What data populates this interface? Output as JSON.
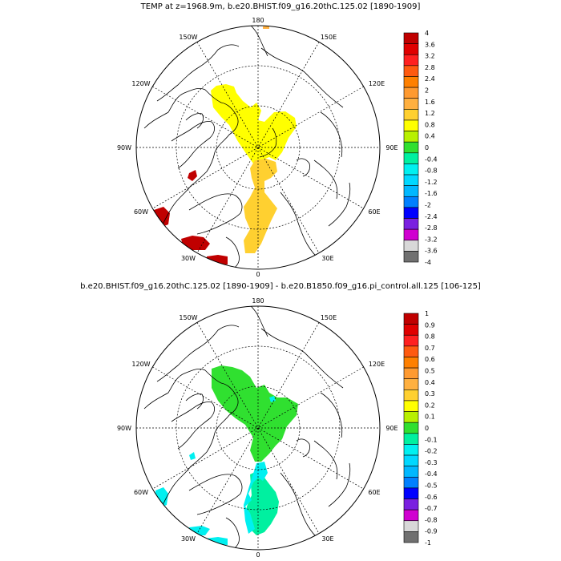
{
  "panels": [
    {
      "title": "TEMP at z=1968.9m, b.e20.BHIST.f09_g16.20thC.125.02 [1890-1909]",
      "lon_labels": {
        "top": "180",
        "top_left": "150W",
        "top_right": "150E",
        "upper_left": "120W",
        "upper_right": "120E",
        "left": "90W",
        "right": "90E",
        "lower_left": "60W",
        "lower_right": "60E",
        "bottom_left": "30W",
        "bottom_right": "30E",
        "bottom": "0"
      },
      "colorbar": {
        "levels": [
          "4",
          "3.6",
          "3.2",
          "2.8",
          "2.4",
          "2",
          "1.6",
          "1.2",
          "0.8",
          "0.4",
          "0",
          "-0.4",
          "-0.8",
          "-1.2",
          "-1.6",
          "-2",
          "-2.4",
          "-2.8",
          "-3.2",
          "-3.6",
          "-4"
        ],
        "colors": [
          "#c00000",
          "#e00000",
          "#ff2020",
          "#ff5a10",
          "#ff8000",
          "#ff9a30",
          "#ffb040",
          "#ffd030",
          "#ffff00",
          "#b8f000",
          "#30e030",
          "#00f0a0",
          "#00f0f0",
          "#00d8ff",
          "#00b8ff",
          "#0080ff",
          "#0000ff",
          "#7a20e0",
          "#d000d0",
          "#d8d8d8",
          "#707070"
        ]
      }
    },
    {
      "title": "b.e20.BHIST.f09_g16.20thC.125.02 [1890-1909] - b.e20.B1850.f09_g16.pi_control.all.125 [106-125]",
      "lon_labels": {
        "top": "180",
        "top_left": "150W",
        "top_right": "150E",
        "upper_left": "120W",
        "upper_right": "120E",
        "left": "90W",
        "right": "90E",
        "lower_left": "60W",
        "lower_right": "60E",
        "bottom_left": "30W",
        "bottom_right": "30E",
        "bottom": "0"
      },
      "colorbar": {
        "levels": [
          "1",
          "0.9",
          "0.8",
          "0.7",
          "0.6",
          "0.5",
          "0.4",
          "0.3",
          "0.2",
          "0.1",
          "0",
          "-0.1",
          "-0.2",
          "-0.3",
          "-0.4",
          "-0.5",
          "-0.6",
          "-0.7",
          "-0.8",
          "-0.9",
          "-1"
        ],
        "colors": [
          "#c00000",
          "#e00000",
          "#ff2020",
          "#ff5a10",
          "#ff8000",
          "#ff9a30",
          "#ffb040",
          "#ffd030",
          "#ffff00",
          "#b8f000",
          "#30e030",
          "#00f0a0",
          "#00f0f0",
          "#00d8ff",
          "#00b8ff",
          "#0080ff",
          "#0000ff",
          "#7a20e0",
          "#d000d0",
          "#d8d8d8",
          "#707070"
        ]
      }
    }
  ],
  "field_colors": {
    "yellow": "#ffff00",
    "gold": "#ffd030",
    "dark_red": "#c00000",
    "green": "#30e030",
    "cyan": "#00f0f0",
    "teal": "#00f0a0",
    "light_orange": "#ffb040"
  }
}
